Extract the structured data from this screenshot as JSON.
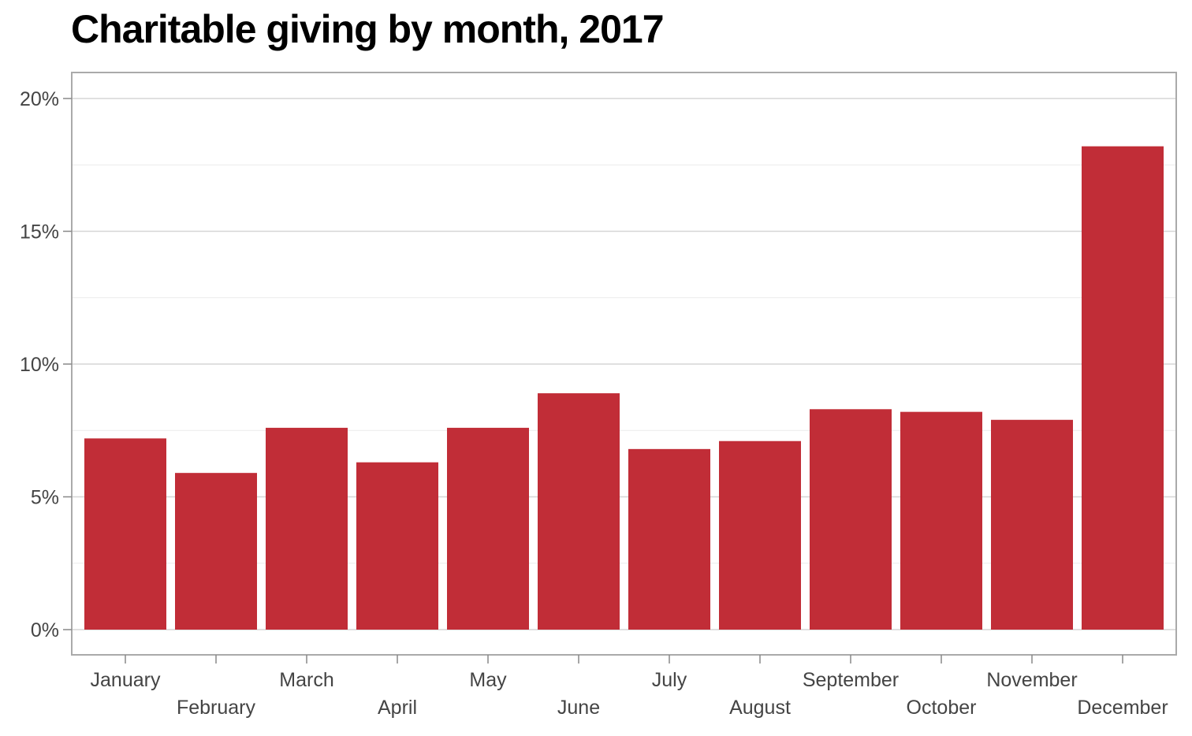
{
  "chart_data": {
    "type": "bar",
    "title": "Charitable giving by month, 2017",
    "xlabel": "",
    "ylabel": "",
    "categories": [
      "January",
      "February",
      "March",
      "April",
      "May",
      "June",
      "July",
      "August",
      "September",
      "October",
      "November",
      "December"
    ],
    "values": [
      7.2,
      5.9,
      7.6,
      6.3,
      7.6,
      8.9,
      6.8,
      7.1,
      8.3,
      8.2,
      7.9,
      18.2
    ],
    "ylim": [
      0,
      20
    ],
    "y_ticks": [
      0,
      5,
      10,
      15,
      20
    ],
    "y_tick_labels": [
      "0%",
      "5%",
      "10%",
      "15%",
      "20%"
    ],
    "grid": true,
    "bar_color": "#c12d37"
  }
}
